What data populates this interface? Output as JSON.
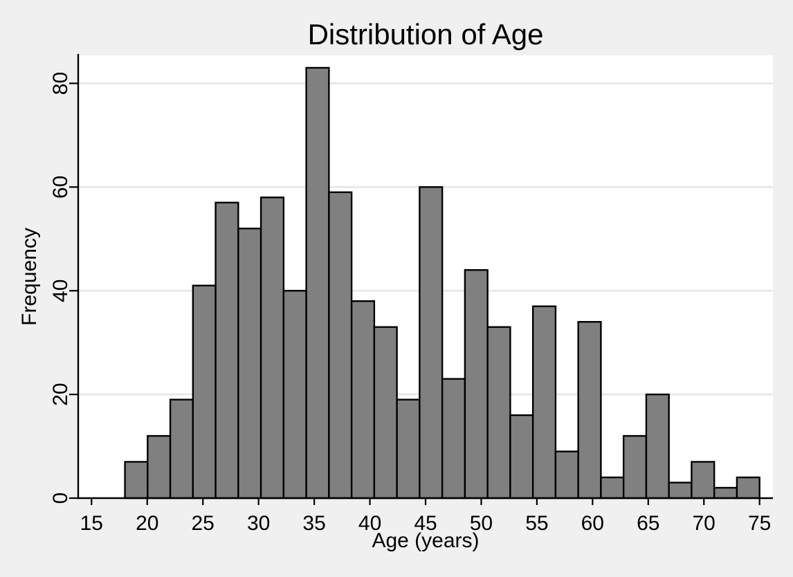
{
  "figure": {
    "title": "Distribution of Age",
    "xlabel": "Age (years)",
    "ylabel": "Frequency"
  },
  "chart_data": {
    "type": "bar",
    "subtype": "histogram",
    "title": "Distribution of Age",
    "xlabel": "Age (years)",
    "ylabel": "Frequency",
    "bin_start": 18,
    "bin_width": 2.0357,
    "n_bins": 28,
    "frequencies": [
      7,
      12,
      19,
      41,
      57,
      52,
      58,
      40,
      83,
      59,
      38,
      33,
      19,
      60,
      23,
      44,
      33,
      16,
      37,
      9,
      34,
      4,
      12,
      20,
      3,
      7,
      2,
      4
    ],
    "total_count": 826,
    "x_ticks": [
      15,
      20,
      25,
      30,
      35,
      40,
      45,
      50,
      55,
      60,
      65,
      70,
      75
    ],
    "y_ticks": [
      0,
      20,
      40,
      60,
      80
    ],
    "xlim": [
      13.8,
      76.2
    ],
    "ylim": [
      0,
      85.4
    ],
    "grid": "horizontal-only",
    "legend": "none",
    "colors": {
      "page_background": "#f0f0f0",
      "plot_background": "#ffffff",
      "gridline": "#e8e8e8",
      "bar_fill": "#808080",
      "bar_edge": "#000000",
      "axis_line": "#000000",
      "text": "#000000"
    }
  }
}
